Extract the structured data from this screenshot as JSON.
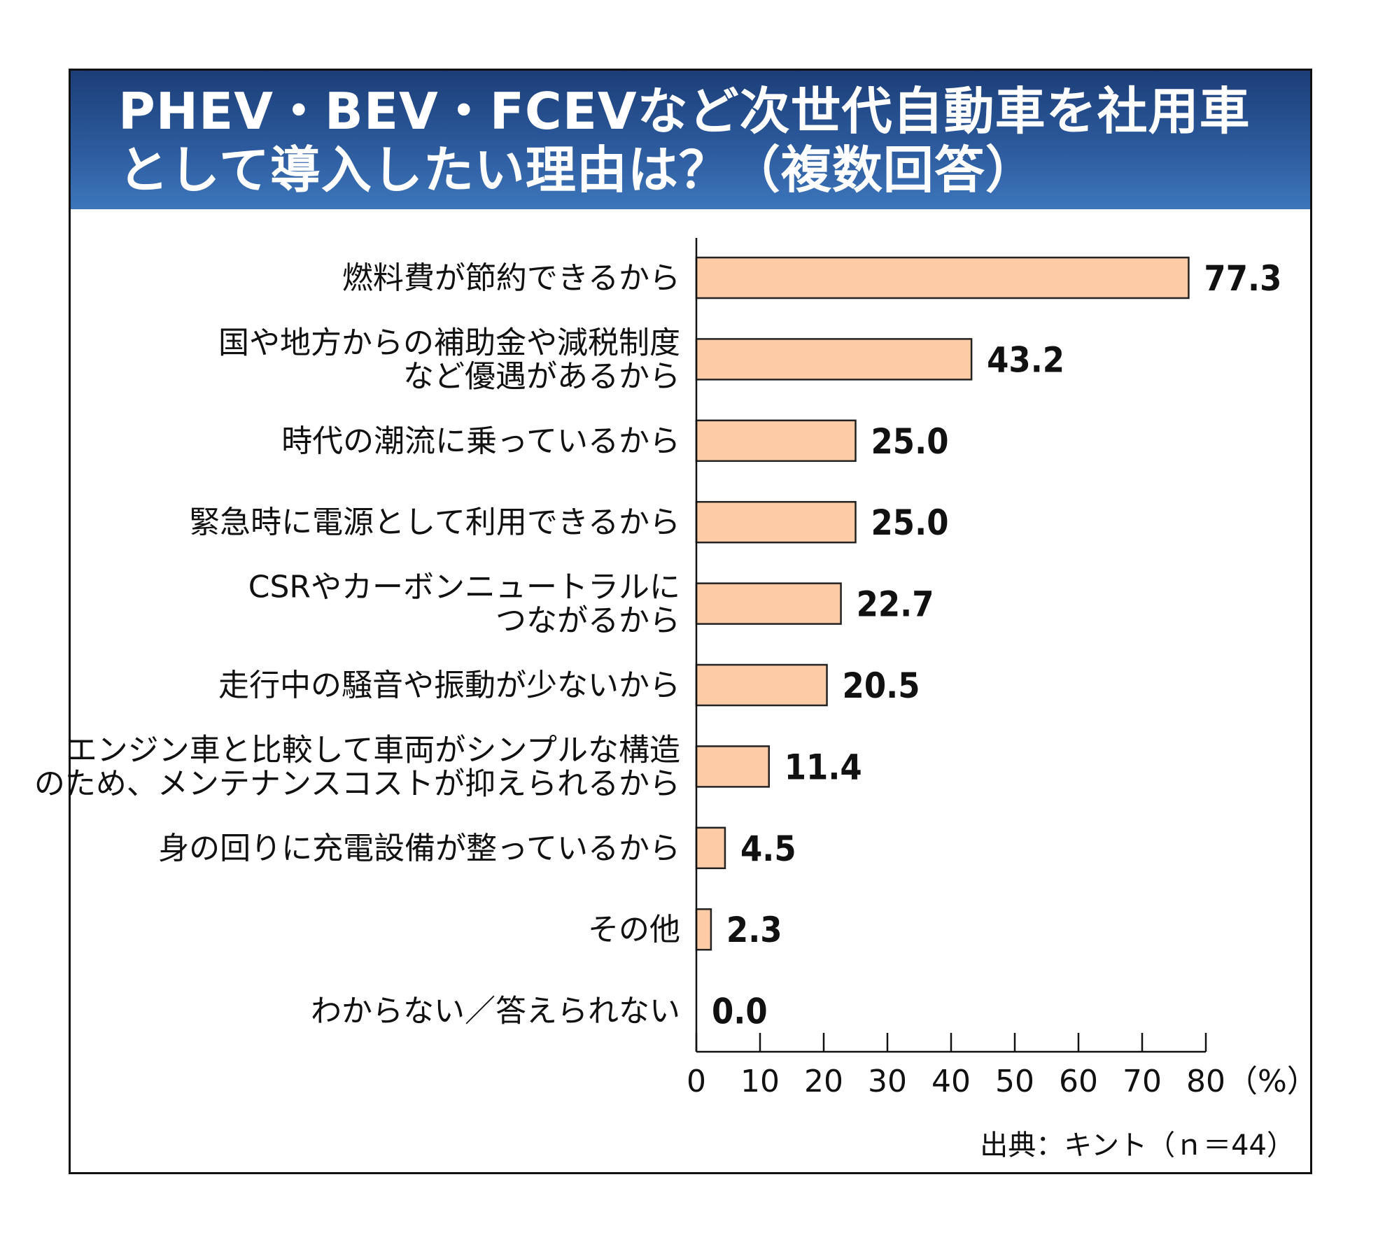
{
  "title": {
    "line1": "PHEV・BEV・FCEVなど次世代自動車を社用車",
    "line2": "として導入したい理由は？（複数回答）"
  },
  "colors": {
    "bar_fill": "#fdcba6",
    "bar_stroke": "#222222",
    "header_top": "#1c3e78",
    "header_bottom": "#3d76bb"
  },
  "unit": "（%）",
  "source": "出典：キント（ｎ＝44）",
  "chart_data": {
    "type": "bar",
    "orientation": "horizontal",
    "categories": [
      [
        "燃料費が節約できるから"
      ],
      [
        "国や地方からの補助金や減税制度",
        "など優遇があるから"
      ],
      [
        "時代の潮流に乗っているから"
      ],
      [
        "緊急時に電源として利用できるから"
      ],
      [
        "CSRやカーボンニュートラルに",
        "つながるから"
      ],
      [
        "走行中の騒音や振動が少ないから"
      ],
      [
        "エンジン車と比較して車両がシンプルな構造",
        "のため、メンテナンスコストが抑えられるから"
      ],
      [
        "身の回りに充電設備が整っているから"
      ],
      [
        "その他"
      ],
      [
        "わからない／答えられない"
      ]
    ],
    "values": [
      77.3,
      43.2,
      25.0,
      25.0,
      22.7,
      20.5,
      11.4,
      4.5,
      2.3,
      0.0
    ],
    "value_labels": [
      "77.3",
      "43.2",
      "25.0",
      "25.0",
      "22.7",
      "20.5",
      "11.4",
      "4.5",
      "2.3",
      "0.0"
    ],
    "xlim": [
      0,
      80
    ],
    "xticks": [
      "0",
      "10",
      "20",
      "30",
      "40",
      "50",
      "60",
      "70",
      "80"
    ],
    "grid": false
  }
}
